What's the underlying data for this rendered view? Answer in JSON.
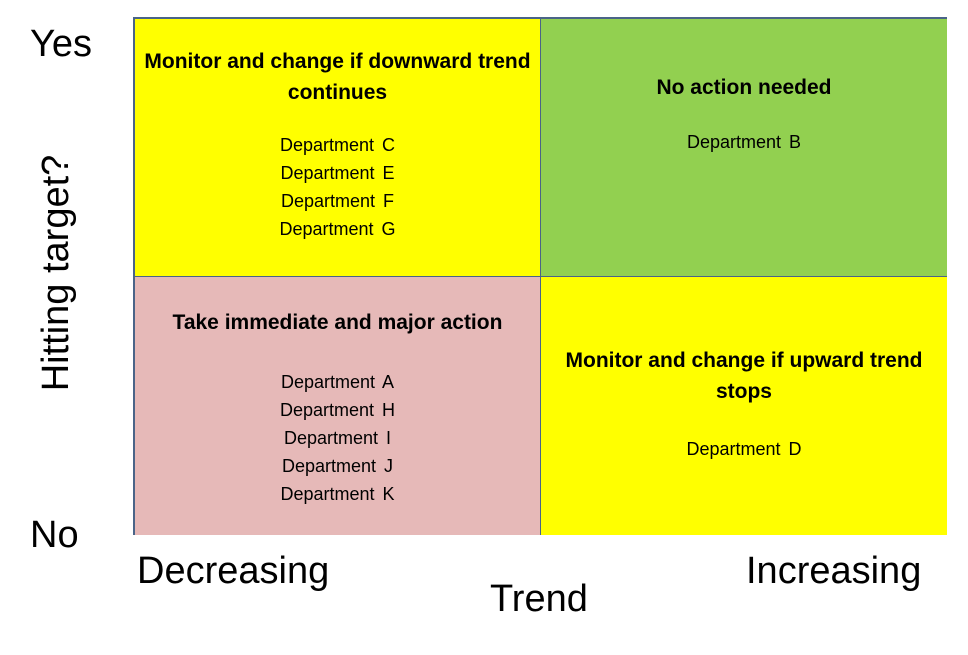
{
  "y_axis": {
    "title": "Hitting target?",
    "top": "Yes",
    "bottom": "No"
  },
  "x_axis": {
    "title": "Trend",
    "left": "Decreasing",
    "right": "Increasing"
  },
  "quadrants": {
    "top_left": {
      "title": "Monitor and change if downward trend continues",
      "departments": [
        "Department C",
        "Department E",
        "Department F",
        "Department G"
      ],
      "color": "#ffff00"
    },
    "top_right": {
      "title": "No action needed",
      "departments": [
        "Department B"
      ],
      "color": "#92d050"
    },
    "bottom_left": {
      "title": "Take immediate and major action",
      "departments": [
        "Department A",
        "Department H",
        "Department I",
        "Department J",
        "Department K"
      ],
      "color": "#e6b9b8"
    },
    "bottom_right": {
      "title": "Monitor and change if upward trend stops",
      "departments": [
        "Department D"
      ],
      "color": "#ffff00"
    }
  }
}
